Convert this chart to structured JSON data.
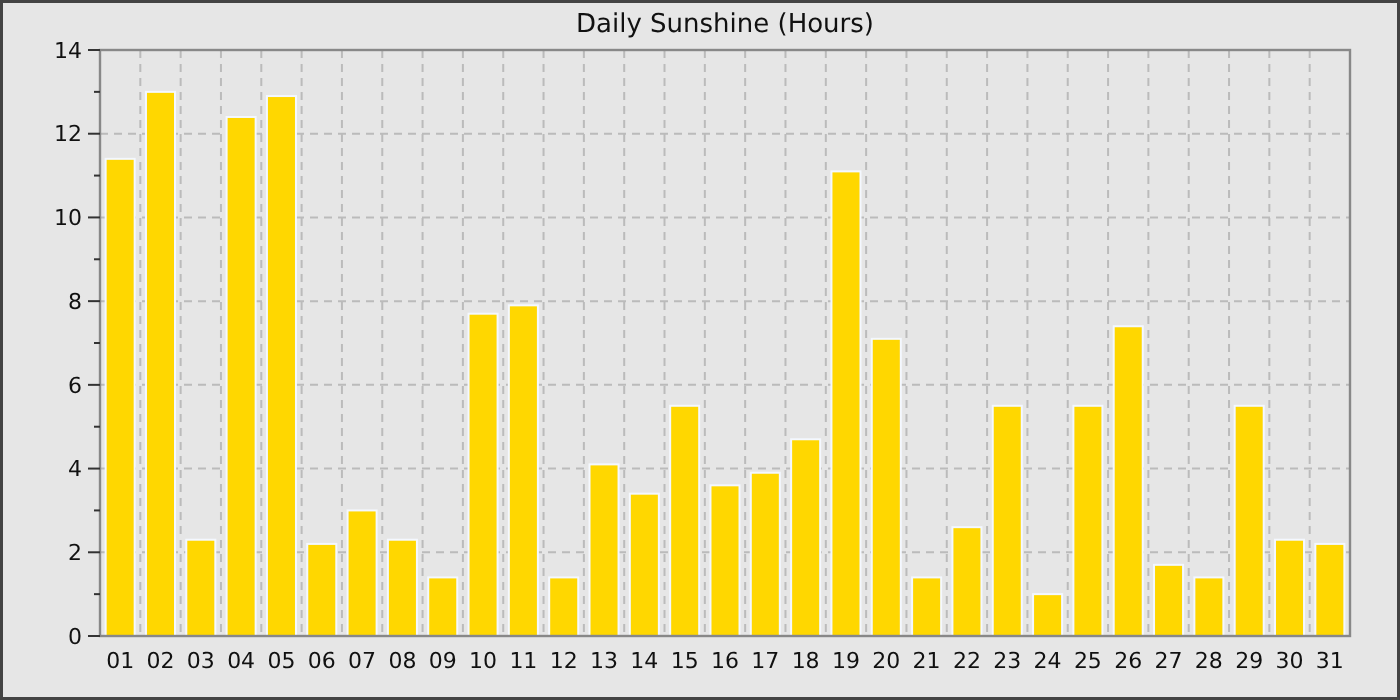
{
  "chart_data": {
    "type": "bar",
    "title": "Daily Sunshine (Hours)",
    "categories": [
      "01",
      "02",
      "03",
      "04",
      "05",
      "06",
      "07",
      "08",
      "09",
      "10",
      "11",
      "12",
      "13",
      "14",
      "15",
      "16",
      "17",
      "18",
      "19",
      "20",
      "21",
      "22",
      "23",
      "24",
      "25",
      "26",
      "27",
      "28",
      "29",
      "30",
      "31"
    ],
    "values": [
      11.4,
      13.0,
      2.3,
      12.4,
      12.9,
      2.2,
      3.0,
      2.3,
      1.4,
      7.7,
      7.9,
      1.4,
      4.1,
      3.4,
      5.5,
      3.6,
      3.9,
      4.7,
      11.1,
      7.1,
      1.4,
      2.6,
      5.5,
      1.0,
      5.5,
      7.4,
      1.7,
      1.4,
      5.5,
      2.3,
      2.2
    ],
    "color": "#ffd700",
    "ylim": [
      0,
      14
    ],
    "yticks": [
      0,
      {
        "value": 1,
        "label": null
      },
      2,
      {
        "value": 3,
        "label": null
      },
      4,
      {
        "value": 5,
        "label": null
      },
      6,
      {
        "value": 7,
        "label": null
      },
      8,
      {
        "value": 9,
        "label": null
      },
      10,
      {
        "value": 11,
        "label": null
      },
      12,
      {
        "value": 13,
        "label": null
      },
      14
    ],
    "grid": true
  }
}
